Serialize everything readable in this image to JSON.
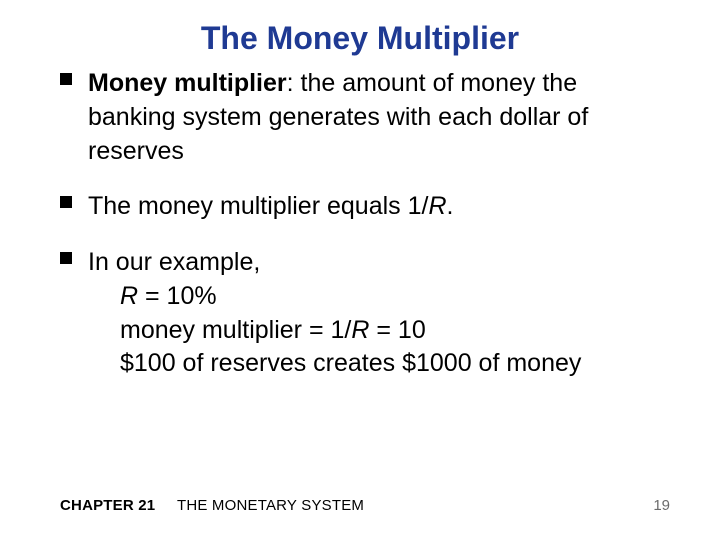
{
  "title": {
    "text": "The Money Multiplier",
    "color": "#1f3a93",
    "fontsize": 32
  },
  "body": {
    "fontsize": 25,
    "color": "#000000",
    "line_height": 1.35
  },
  "bullets": [
    {
      "term": "Money multiplier",
      "term_suffix": ":  the amount of money the banking system generates with each dollar of reserves"
    },
    {
      "plain_before": "The money multiplier equals 1/",
      "italic": "R",
      "plain_after": "."
    },
    {
      "plain_before": "In our example,",
      "lines": [
        {
          "italic": "R",
          "after": " = 10%"
        },
        {
          "before": "money multiplier = 1/",
          "italic": "R",
          "after": " = 10"
        },
        {
          "before": "$100 of reserves creates $1000 of money"
        }
      ]
    }
  ],
  "footer": {
    "chapter_label": "CHAPTER 21",
    "chapter_title": "THE MONETARY SYSTEM",
    "page_number": "19",
    "fontsize": 15,
    "color_left": "#000000",
    "color_page": "#6b6b6b"
  }
}
